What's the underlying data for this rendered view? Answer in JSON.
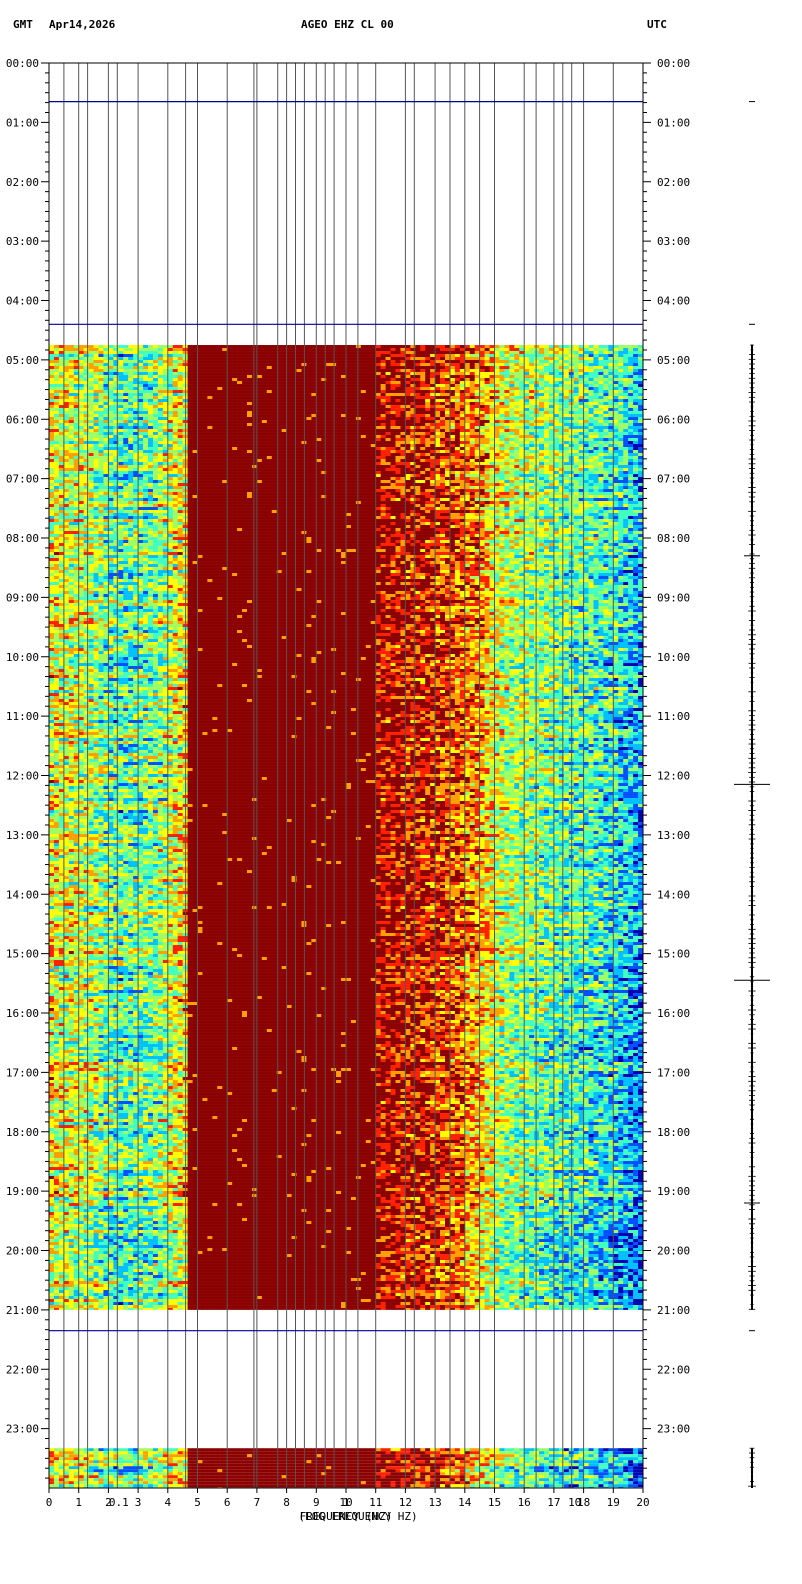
{
  "header": {
    "left_tz": "GMT",
    "date": "Apr14,2026",
    "station": "AGEO EHZ CL 00",
    "right_tz": "UTC"
  },
  "chart_data": {
    "type": "heatmap",
    "title": "AGEO EHZ CL 00",
    "xlabel": "FREQUENCY (HZ)",
    "xlabel_overlay": "(LOG FREQUENCY HZ)",
    "xlim": [
      0,
      20
    ],
    "x_ticks": [
      "0",
      "1",
      "2",
      "3",
      "4",
      "5",
      "6",
      "7",
      "8",
      "9",
      "10",
      "11",
      "12",
      "13",
      "14",
      "15",
      "16",
      "17",
      "18",
      "19",
      "20"
    ],
    "x_ticks_log": [
      {
        "label": "0.1",
        "at": 2.35
      },
      {
        "label": "1",
        "at": 10.0
      },
      {
        "label": "10",
        "at": 17.7
      }
    ],
    "ylim_hours": [
      0,
      24
    ],
    "y_ticks": [
      "00:00",
      "01:00",
      "02:00",
      "03:00",
      "04:00",
      "05:00",
      "06:00",
      "07:00",
      "08:00",
      "09:00",
      "10:00",
      "11:00",
      "12:00",
      "13:00",
      "14:00",
      "15:00",
      "16:00",
      "17:00",
      "18:00",
      "19:00",
      "20:00",
      "21:00",
      "22:00",
      "23:00"
    ],
    "data_blocks_hours": [
      {
        "start": 4.75,
        "end": 21.0
      },
      {
        "start": 23.33,
        "end": 24.0
      }
    ],
    "gap_lines_hours": [
      0.65,
      4.4,
      21.35
    ],
    "vertical_grid_freqs": [
      0.5,
      1,
      1.3,
      2,
      2.3,
      3,
      4,
      4.6,
      5,
      6,
      6.9,
      7,
      7.7,
      8,
      8.3,
      8.6,
      9,
      9.3,
      9.6,
      10,
      10.4,
      11,
      12,
      12.3,
      13,
      13.5,
      14,
      14.5,
      15,
      16,
      16.4,
      17,
      17.3,
      17.6,
      18,
      19
    ],
    "colorscale": [
      "#0000b0",
      "#0050ff",
      "#00c0ff",
      "#40ffc0",
      "#a0ff60",
      "#ffff00",
      "#ffa000",
      "#ff2000",
      "#8b0000"
    ],
    "spectrum_profile": [
      {
        "freq": 0.0,
        "level": 0.62
      },
      {
        "freq": 1.3,
        "level": 0.55
      },
      {
        "freq": 2.3,
        "level": 0.4
      },
      {
        "freq": 3.5,
        "level": 0.45
      },
      {
        "freq": 4.6,
        "level": 0.65
      },
      {
        "freq": 4.7,
        "level": 1.0
      },
      {
        "freq": 11.0,
        "level": 0.99
      },
      {
        "freq": 13.0,
        "level": 0.9
      },
      {
        "freq": 14.5,
        "level": 0.8
      },
      {
        "freq": 15.2,
        "level": 0.6
      },
      {
        "freq": 17.0,
        "level": 0.5
      },
      {
        "freq": 19.0,
        "level": 0.4
      },
      {
        "freq": 20.0,
        "level": 0.25
      }
    ],
    "helicorder_event_hours": [
      8.3,
      12.15,
      15.45,
      19.2
    ]
  }
}
